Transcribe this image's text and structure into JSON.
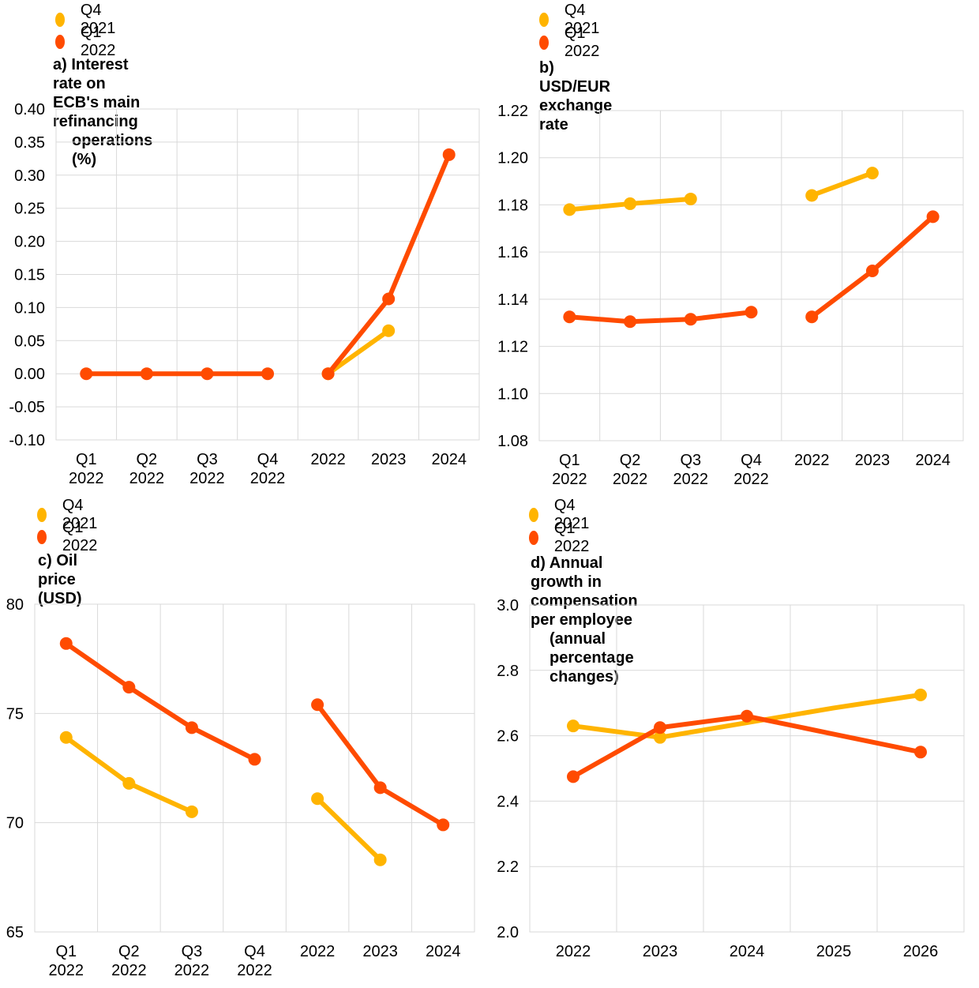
{
  "chart_data": [
    {
      "id": "a",
      "type": "line",
      "title": "a) Interest rate on ECB's main refinancing",
      "title_line2": "operations (%)",
      "categories": [
        "Q1\n2022",
        "Q2\n2022",
        "Q3\n2022",
        "Q4\n2022",
        "2022",
        "2023",
        "2024"
      ],
      "ylim": [
        -0.1,
        0.4
      ],
      "yticks": [
        "0.40",
        "0.35",
        "0.30",
        "0.25",
        "0.20",
        "0.15",
        "0.10",
        "0.05",
        "0.00",
        "-0.05",
        "-0.10"
      ],
      "ytick_values": [
        0.4,
        0.35,
        0.3,
        0.25,
        0.2,
        0.15,
        0.1,
        0.05,
        0.0,
        -0.05,
        -0.1
      ],
      "grid": true,
      "series": [
        {
          "name": "Q4 2021",
          "color": "#FFB400",
          "segments": [
            [
              4,
              5
            ]
          ],
          "values": [
            null,
            null,
            null,
            null,
            0.0,
            0.065,
            null
          ]
        },
        {
          "name": "Q1 2022",
          "color": "#FF4B00",
          "segments": [
            [
              0,
              3
            ],
            [
              4,
              6
            ]
          ],
          "values": [
            0.0,
            0.0,
            0.0,
            0.0,
            0.0,
            0.113,
            0.331
          ]
        }
      ]
    },
    {
      "id": "b",
      "type": "line",
      "title": "b) USD/EUR exchange rate",
      "title_line2": "",
      "categories": [
        "Q1\n2022",
        "Q2\n2022",
        "Q3\n2022",
        "Q4\n2022",
        "2022",
        "2023",
        "2024"
      ],
      "ylim": [
        1.08,
        1.22
      ],
      "yticks": [
        "1.22",
        "1.20",
        "1.18",
        "1.16",
        "1.14",
        "1.12",
        "1.10",
        "1.08"
      ],
      "ytick_values": [
        1.22,
        1.2,
        1.18,
        1.16,
        1.14,
        1.12,
        1.1,
        1.08
      ],
      "grid": true,
      "series": [
        {
          "name": "Q4 2021",
          "color": "#FFB400",
          "segments": [
            [
              0,
              2
            ],
            [
              4,
              5
            ]
          ],
          "values": [
            1.178,
            1.1805,
            1.1825,
            null,
            1.184,
            1.1935,
            null
          ]
        },
        {
          "name": "Q1 2022",
          "color": "#FF4B00",
          "segments": [
            [
              0,
              3
            ],
            [
              4,
              6
            ]
          ],
          "values": [
            1.1325,
            1.1305,
            1.1315,
            1.1345,
            1.1325,
            1.152,
            1.175
          ]
        }
      ]
    },
    {
      "id": "c",
      "type": "line",
      "title": "c) Oil price (USD)",
      "title_line2": "",
      "categories": [
        "Q1\n2022",
        "Q2\n2022",
        "Q3\n2022",
        "Q4\n2022",
        "2022",
        "2023",
        "2024"
      ],
      "ylim": [
        65,
        80
      ],
      "yticks": [
        "80",
        "75",
        "70",
        "65"
      ],
      "ytick_values": [
        80,
        75,
        70,
        65
      ],
      "grid": true,
      "series": [
        {
          "name": "Q4 2021",
          "color": "#FFB400",
          "segments": [
            [
              0,
              2
            ],
            [
              4,
              5
            ]
          ],
          "values": [
            73.9,
            71.8,
            70.5,
            null,
            71.1,
            68.3,
            null
          ]
        },
        {
          "name": "Q1 2022",
          "color": "#FF4B00",
          "segments": [
            [
              0,
              3
            ],
            [
              4,
              6
            ]
          ],
          "values": [
            78.2,
            76.2,
            74.35,
            72.9,
            75.4,
            71.6,
            69.9
          ]
        }
      ]
    },
    {
      "id": "d",
      "type": "line",
      "title": "d) Annual growth in compensation per employee",
      "title_line2": "(annual percentage changes)",
      "categories": [
        "2022",
        "2023",
        "2024",
        "2025",
        "2026"
      ],
      "ylim": [
        2.0,
        3.0
      ],
      "yticks": [
        "3.0",
        "2.8",
        "2.6",
        "2.4",
        "2.2",
        "2.0"
      ],
      "ytick_values": [
        3.0,
        2.8,
        2.6,
        2.4,
        2.2,
        2.0
      ],
      "grid": true,
      "series": [
        {
          "name": "Q4 2021",
          "color": "#FFB400",
          "segments": [
            [
              0,
              4
            ]
          ],
          "markers": [
            0,
            1,
            4
          ],
          "values": [
            2.63,
            2.595,
            2.64,
            2.685,
            2.725
          ]
        },
        {
          "name": "Q1 2022",
          "color": "#FF4B00",
          "segments": [
            [
              0,
              4
            ]
          ],
          "markers": [
            0,
            1,
            2,
            4
          ],
          "values": [
            2.475,
            2.625,
            2.66,
            2.605,
            2.55
          ]
        }
      ]
    }
  ]
}
